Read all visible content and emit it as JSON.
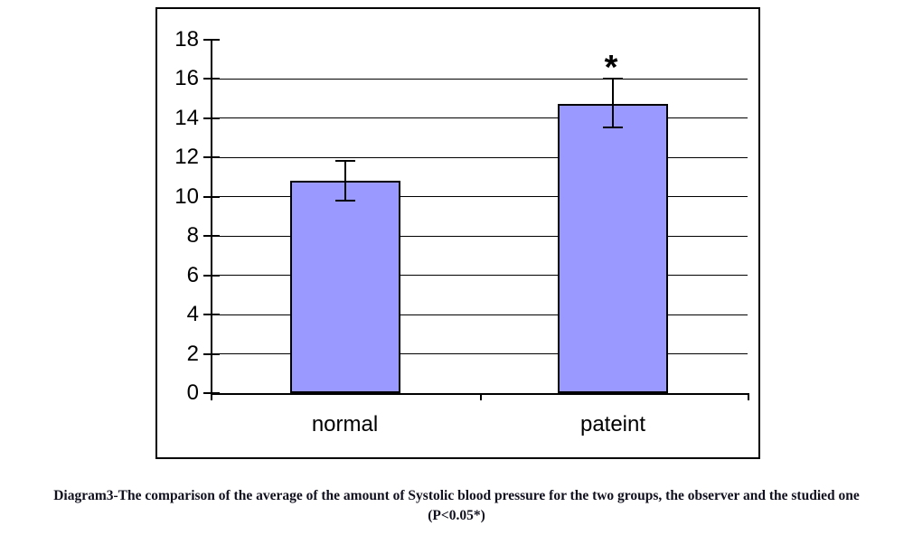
{
  "caption": {
    "line1": "Diagram3-The comparison of the average of the amount of Systolic blood pressure for the two groups, the observer and the studied one",
    "line2": "(P<0.05*)"
  },
  "chart_data": {
    "type": "bar",
    "title": "",
    "xlabel": "",
    "ylabel": "",
    "categories": [
      "normal",
      "pateint"
    ],
    "values": [
      10.8,
      14.7
    ],
    "error_bars": [
      {
        "low": 9.8,
        "high": 11.8
      },
      {
        "low": 13.5,
        "high": 16.0
      }
    ],
    "annotations": [
      {
        "category_index": 1,
        "text": "*"
      }
    ],
    "ylim": [
      0,
      18
    ],
    "yticks": [
      0,
      2,
      4,
      6,
      8,
      10,
      12,
      14,
      16,
      18
    ],
    "grid": true,
    "legend_position": "none",
    "bar_color": "#9999FF",
    "bar_border_color": "#000000",
    "axis_color": "#000000"
  }
}
